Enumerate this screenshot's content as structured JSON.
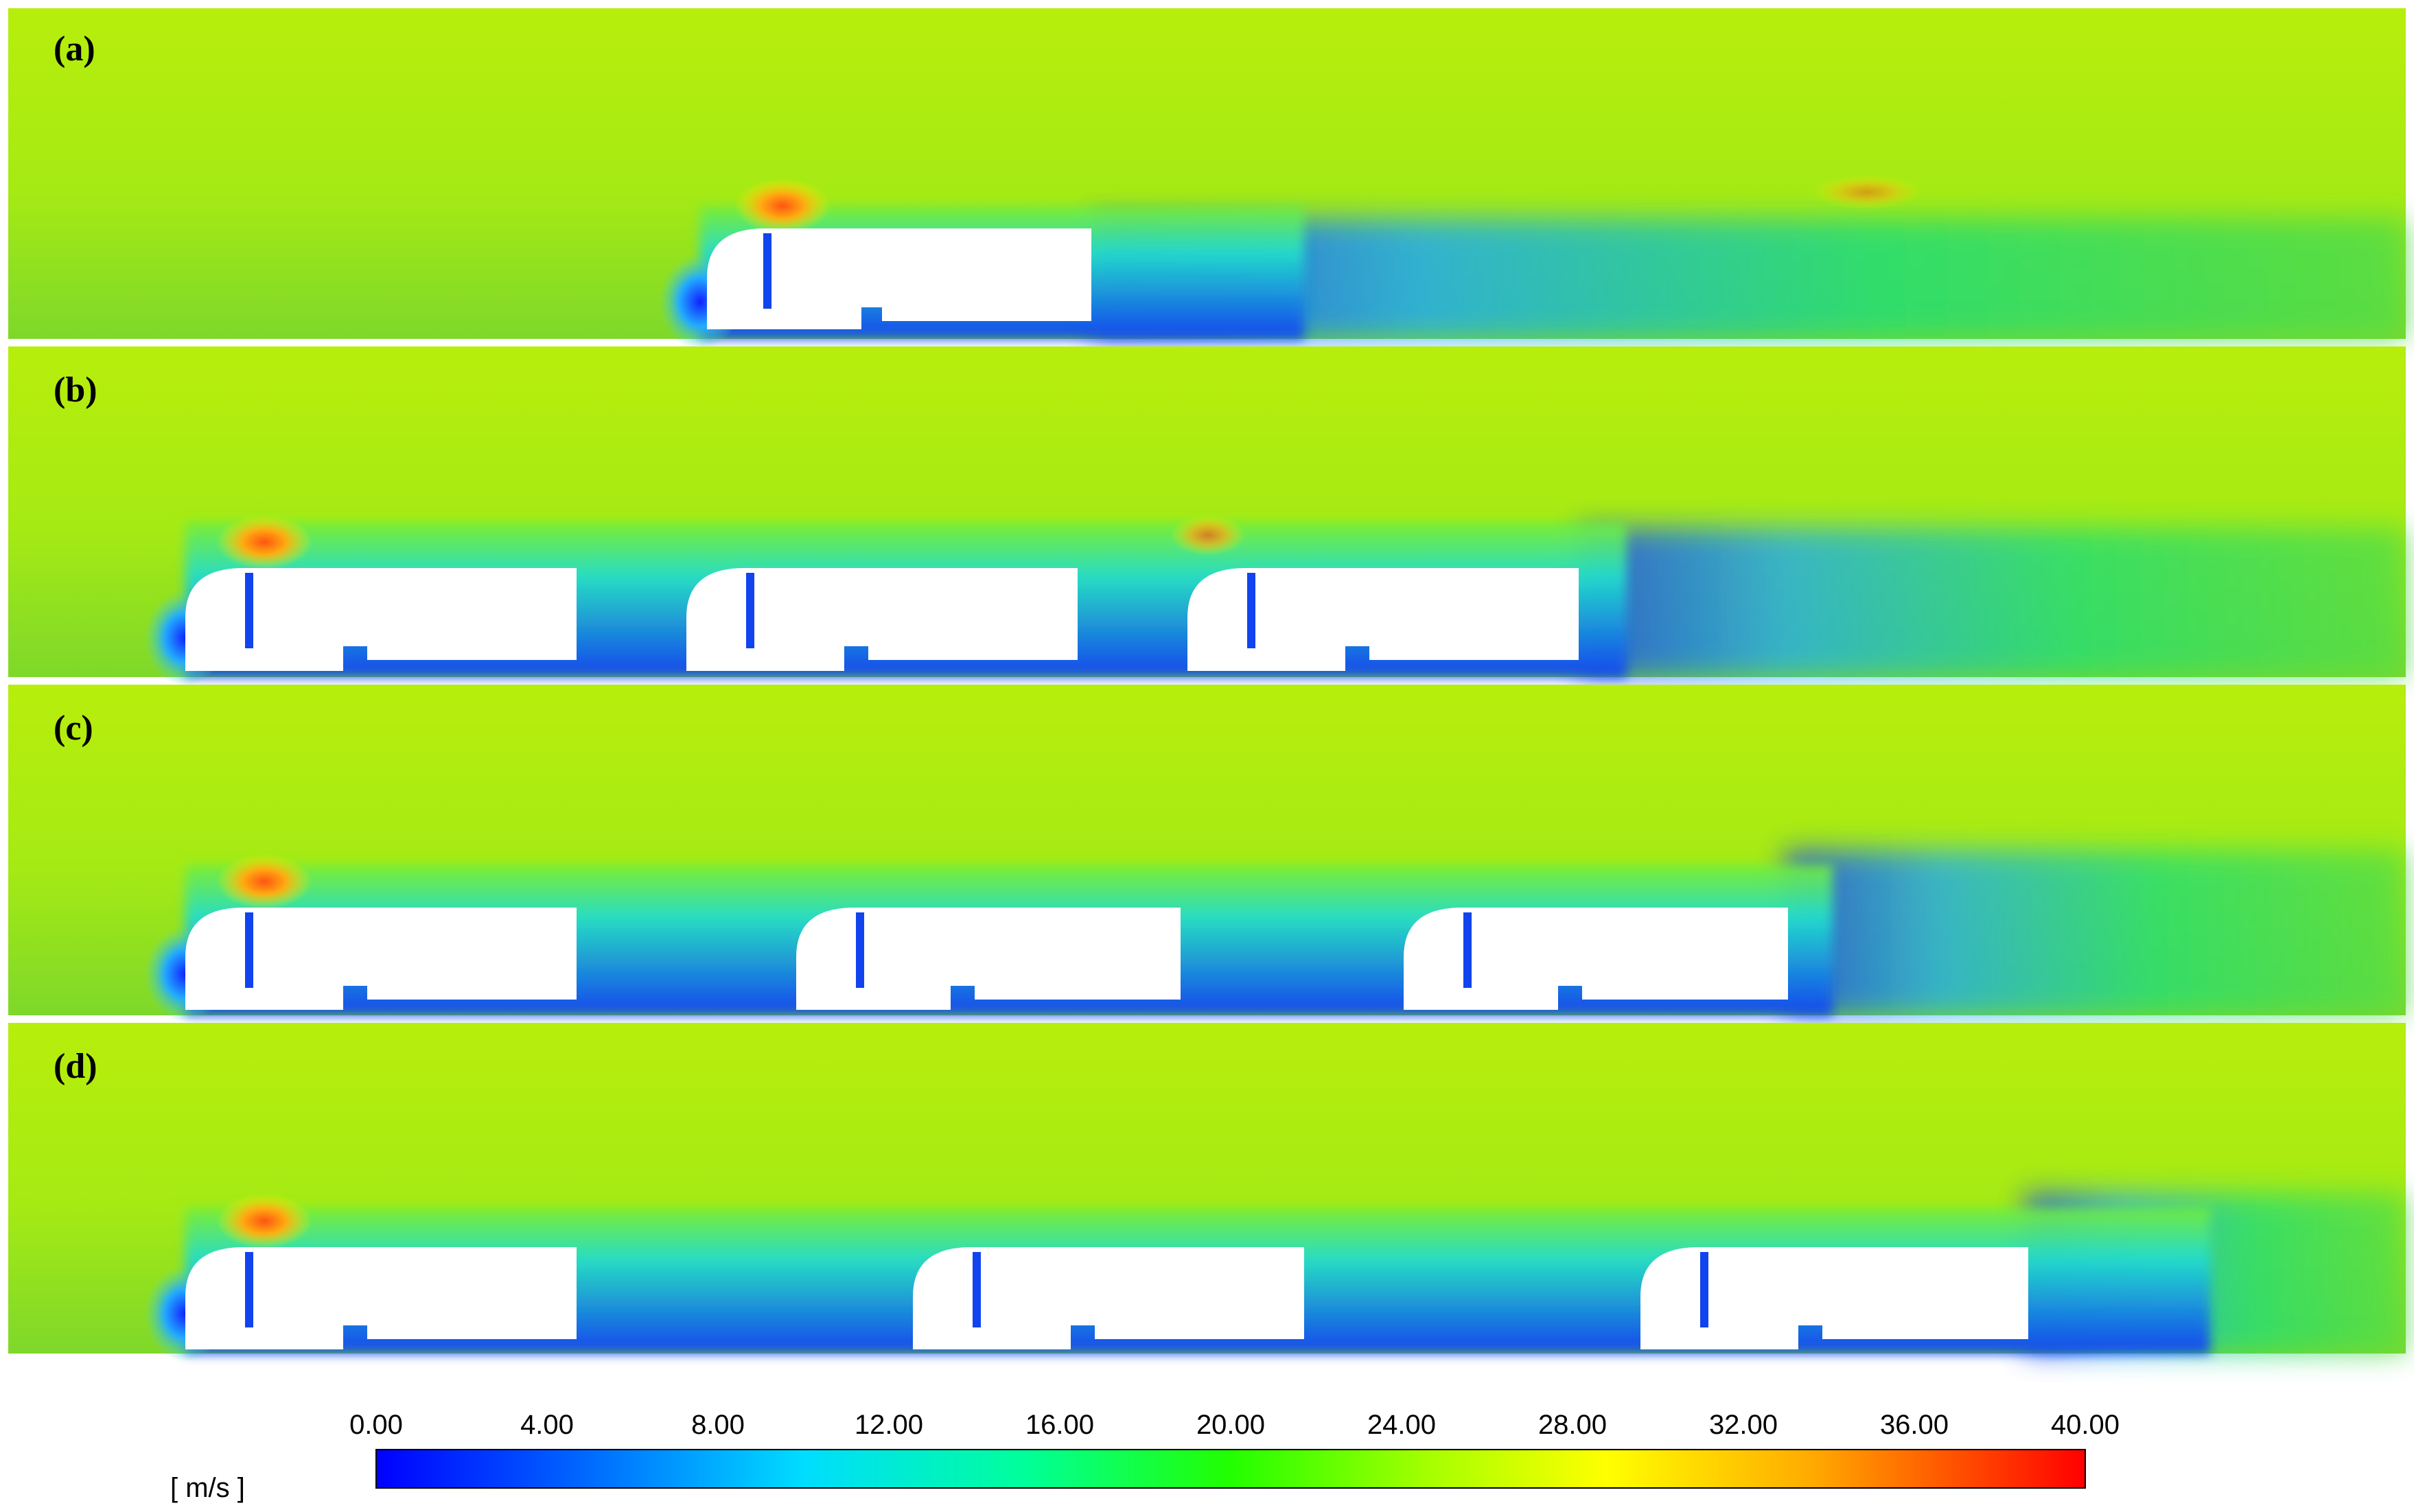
{
  "figure": {
    "panels": [
      {
        "id": "a",
        "label": "(a)",
        "vehicles": [
          {
            "description": "single truck"
          }
        ]
      },
      {
        "id": "b",
        "label": "(b)",
        "vehicles": [
          {
            "description": "lead truck"
          },
          {
            "description": "middle truck"
          },
          {
            "description": "trailing truck"
          }
        ]
      },
      {
        "id": "c",
        "label": "(c)",
        "vehicles": [
          {
            "description": "lead truck"
          },
          {
            "description": "middle truck"
          },
          {
            "description": "trailing truck"
          }
        ]
      },
      {
        "id": "d",
        "label": "(d)",
        "vehicles": [
          {
            "description": "lead truck"
          },
          {
            "description": "middle truck"
          },
          {
            "description": "trailing truck"
          }
        ]
      }
    ],
    "colorbar": {
      "unit": "[ m/s ]",
      "min": 0,
      "max": 40,
      "ticks": [
        "0.00",
        "4.00",
        "8.00",
        "12.00",
        "16.00",
        "20.00",
        "24.00",
        "28.00",
        "32.00",
        "36.00",
        "40.00"
      ],
      "colors": [
        "#0000ff",
        "#00aaff",
        "#00ffff",
        "#00ff88",
        "#33ff00",
        "#aaff00",
        "#ffff00",
        "#ffaa00",
        "#ff5500",
        "#ff0000"
      ]
    },
    "field_colors": {
      "freestream": "#aaee11",
      "upstream": "#77dd22",
      "wake": "#33dd55",
      "low_speed": "#1133ee",
      "mid_speed": "#22ccdd",
      "stagnation": "#3399ff",
      "high_speed": "#ff8822"
    }
  }
}
